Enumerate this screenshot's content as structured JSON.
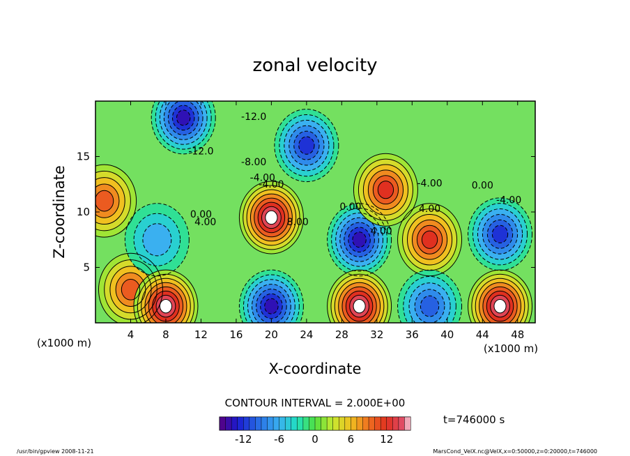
{
  "chart_data": {
    "type": "heatmap",
    "title": "zonal velocity",
    "xlabel": "X-coordinate",
    "ylabel": "Z-coordinate",
    "x_unit": "(x1000 m)",
    "y_unit": "(x1000 m)",
    "xlim": [
      0,
      50
    ],
    "ylim": [
      0,
      20
    ],
    "xticks": [
      4,
      8,
      12,
      16,
      20,
      24,
      28,
      32,
      36,
      40,
      44,
      48
    ],
    "yticks": [
      5,
      10,
      15
    ],
    "contour_interval_text": "CONTOUR INTERVAL = 2.000E+00",
    "time_text": "t=746000 s",
    "colorbar": {
      "range": [
        -16,
        16
      ],
      "ticks": [
        -12,
        -6,
        0,
        6,
        12
      ]
    },
    "contour_labels": [
      "-12.0",
      "-12.0",
      "-8.00",
      "-4.00",
      "-4.00",
      "0.00",
      "4.00",
      "8.00",
      "0.00",
      "4.00",
      "-4.00",
      "4.00",
      "0.00",
      "-4.00"
    ],
    "cells": [
      {
        "x": 1,
        "z": 11,
        "value": 10
      },
      {
        "x": 4,
        "z": 3,
        "value": 9
      },
      {
        "x": 7,
        "z": 7.5,
        "value": -6
      },
      {
        "x": 20,
        "z": 9.5,
        "value": 16
      },
      {
        "x": 30,
        "z": 7.5,
        "value": -14
      },
      {
        "x": 38,
        "z": 7.5,
        "value": 12
      },
      {
        "x": 46,
        "z": 8,
        "value": -12
      },
      {
        "x": 8,
        "z": 1.5,
        "value": 16
      },
      {
        "x": 20,
        "z": 1.5,
        "value": -14
      },
      {
        "x": 30,
        "z": 1.5,
        "value": 16
      },
      {
        "x": 38,
        "z": 1.5,
        "value": -10
      },
      {
        "x": 46,
        "z": 1.5,
        "value": 16
      },
      {
        "x": 24,
        "z": 16,
        "value": -12
      },
      {
        "x": 10,
        "z": 18.5,
        "value": -14
      },
      {
        "x": 33,
        "z": 12,
        "value": 12
      }
    ]
  },
  "footer": {
    "left": "/usr/bin/gpview  2008-11-21",
    "right": "MarsCond_VelX.nc@VelX,x=0:50000,z=0:20000,t=746000"
  }
}
